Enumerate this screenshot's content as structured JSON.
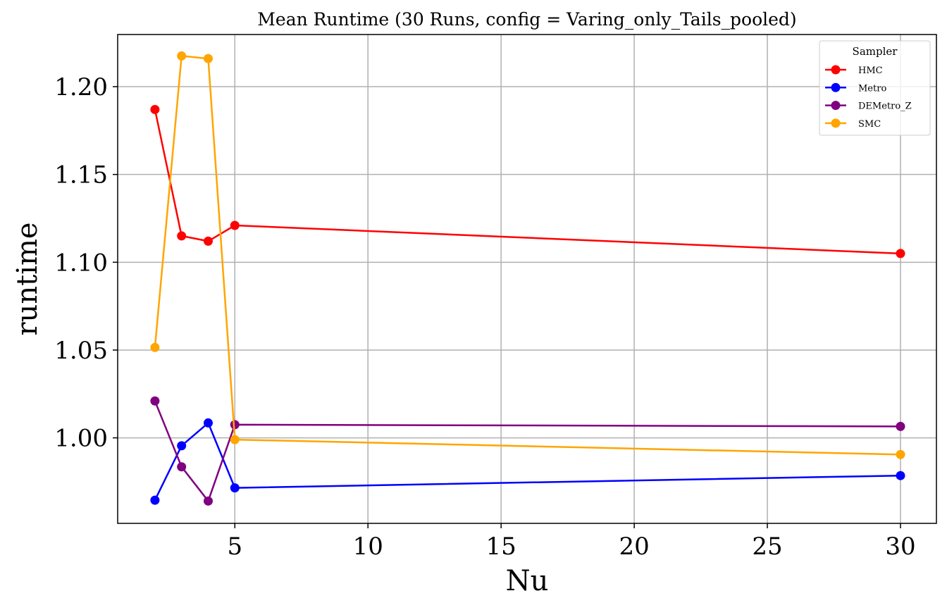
{
  "chart_data": {
    "type": "line",
    "title": "Mean Runtime (30 Runs, config = Varing_only_Tails_pooled)",
    "xlabel": "Nu",
    "ylabel": "runtime",
    "x": [
      2,
      3,
      4,
      5,
      30
    ],
    "xlim": [
      0.6,
      31.35
    ],
    "ylim": [
      0.9513,
      1.2297
    ],
    "xticks": [
      5,
      10,
      15,
      20,
      25,
      30
    ],
    "xtick_labels": [
      "5",
      "10",
      "15",
      "20",
      "25",
      "30"
    ],
    "yticks": [
      1.0,
      1.05,
      1.1,
      1.15,
      1.2
    ],
    "ytick_labels": [
      "1.00",
      "1.05",
      "1.10",
      "1.15",
      "1.20"
    ],
    "grid": true,
    "legend": {
      "title": "Sampler",
      "placement": "top-right"
    },
    "series": [
      {
        "name": "HMC",
        "color": "#ff0000",
        "values": [
          1.187,
          1.115,
          1.112,
          1.121,
          1.105
        ]
      },
      {
        "name": "Metro",
        "color": "#0000ff",
        "values": [
          0.9645,
          0.9955,
          1.0085,
          0.9715,
          0.9785
        ]
      },
      {
        "name": "DEMetro_Z",
        "color": "#800080",
        "values": [
          1.021,
          0.9835,
          0.964,
          1.0075,
          1.0065
        ]
      },
      {
        "name": "SMC",
        "color": "#ffa500",
        "values": [
          1.0515,
          1.2175,
          1.216,
          0.999,
          0.9905
        ]
      }
    ]
  }
}
